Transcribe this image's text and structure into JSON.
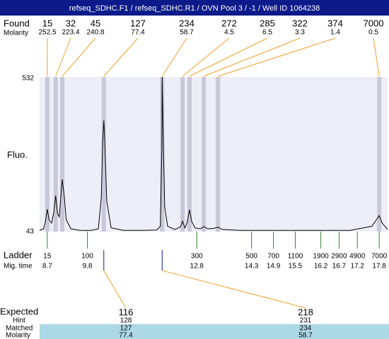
{
  "chart_data": {
    "type": "line",
    "title": "refseq_SDHC.F1 / refseq_SDHC.R1 / OVN Pool 3 / -1 / Well ID 1064238",
    "y_label": "Fluo.",
    "color": "#000000",
    "xlim": [
      8.49,
      18.03
    ],
    "ylim": [
      43,
      532
    ],
    "yticks": [
      43,
      532
    ],
    "x": [
      8.49,
      8.6,
      8.65,
      8.7,
      8.75,
      8.82,
      8.88,
      8.93,
      8.98,
      9.03,
      9.07,
      9.11,
      9.16,
      9.22,
      9.35,
      9.6,
      9.9,
      10.1,
      10.18,
      10.22,
      10.25,
      10.28,
      10.33,
      10.45,
      10.8,
      11.3,
      11.7,
      11.8,
      11.84,
      11.85,
      11.87,
      11.92,
      12.0,
      12.2,
      12.35,
      12.41,
      12.47,
      12.53,
      12.6,
      12.66,
      12.75,
      12.9,
      12.99,
      13.1,
      13.25,
      13.38,
      13.5,
      14,
      15,
      16,
      17,
      17.6,
      17.72,
      17.8,
      17.88,
      18.03
    ],
    "values": [
      47,
      52,
      75,
      114,
      80,
      70,
      105,
      157,
      100,
      90,
      150,
      208,
      160,
      80,
      52,
      47,
      47,
      52,
      150,
      330,
      395,
      320,
      140,
      55,
      47,
      47,
      48,
      60,
      300,
      532,
      400,
      120,
      60,
      50,
      58,
      76,
      55,
      70,
      112,
      75,
      55,
      52,
      59,
      52,
      53,
      57,
      50,
      47,
      47,
      47,
      47,
      60,
      80,
      94,
      70,
      50
    ],
    "peaks": {
      "label_size": "Found",
      "label_molarity": "Molarity",
      "sizes": [
        15,
        32,
        45,
        127,
        234,
        272,
        285,
        322,
        374,
        7000
      ],
      "molarity": [
        252.5,
        223.4,
        240.8,
        77.4,
        58.7,
        4.5,
        6.5,
        3.3,
        1.4,
        0.5
      ],
      "times": [
        8.7,
        8.93,
        9.11,
        10.25,
        11.85,
        12.41,
        12.6,
        12.99,
        13.38,
        17.8
      ]
    },
    "ladder": {
      "label_size": "Ladder",
      "label_time": "Mig. time",
      "sizes": [
        15,
        100,
        300,
        500,
        700,
        1100,
        1900,
        2900,
        4900,
        7000
      ],
      "times": [
        8.7,
        9.8,
        12.8,
        14.3,
        14.9,
        15.5,
        16.2,
        16.7,
        17.2,
        17.8
      ]
    },
    "expected": {
      "label_expected": "Expected",
      "label_hint": "Hint",
      "label_matched": "Matched",
      "label_molarity": "Molarity",
      "expected": [
        116,
        218
      ],
      "hint": [
        128,
        231
      ],
      "matched": [
        127,
        234
      ],
      "molarity": [
        77.4,
        58.7
      ],
      "times": [
        10.25,
        11.85
      ]
    }
  }
}
